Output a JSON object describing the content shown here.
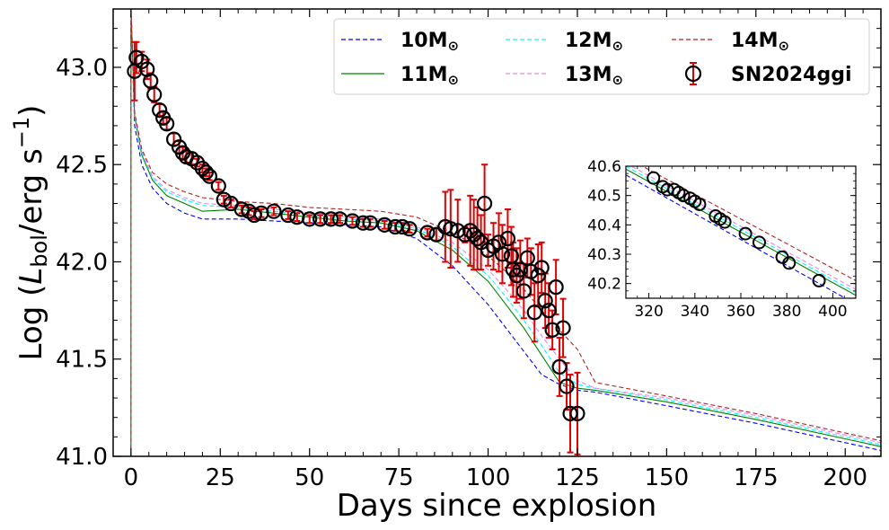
{
  "chart_data": {
    "type": "line",
    "xlabel": "Days since explosion",
    "ylabel": {
      "prefix": "Log (",
      "L": "L",
      "sub": "bol",
      "unit": "/erg s",
      "sup": "−1",
      "suffix": ")"
    },
    "xlim": [
      -5,
      210
    ],
    "ylim": [
      41.0,
      43.3
    ],
    "xticks": [
      0,
      25,
      50,
      75,
      100,
      125,
      150,
      175,
      200
    ],
    "yticks": [
      41.0,
      41.5,
      42.0,
      42.5,
      43.0
    ],
    "legend_position": "top-right",
    "series": [
      {
        "name": "10M",
        "color": "#0000ff",
        "dash": "dashed",
        "points": [
          [
            0,
            43.3
          ],
          [
            1,
            42.7
          ],
          [
            3,
            42.5
          ],
          [
            6,
            42.38
          ],
          [
            10,
            42.3
          ],
          [
            15,
            42.25
          ],
          [
            20,
            42.22
          ],
          [
            30,
            42.22
          ],
          [
            40,
            42.21
          ],
          [
            50,
            42.2
          ],
          [
            60,
            42.19
          ],
          [
            70,
            42.18
          ],
          [
            80,
            42.12
          ],
          [
            85,
            42.05
          ],
          [
            90,
            41.98
          ],
          [
            95,
            41.88
          ],
          [
            100,
            41.78
          ],
          [
            105,
            41.66
          ],
          [
            110,
            41.54
          ],
          [
            115,
            41.42
          ],
          [
            120,
            41.37
          ],
          [
            125,
            41.34
          ],
          [
            130,
            41.33
          ],
          [
            150,
            41.26
          ],
          [
            175,
            41.17
          ],
          [
            200,
            41.07
          ],
          [
            210,
            41.03
          ]
        ]
      },
      {
        "name": "11M",
        "color": "#008000",
        "dash": "solid",
        "points": [
          [
            0,
            43.3
          ],
          [
            1,
            42.75
          ],
          [
            3,
            42.55
          ],
          [
            6,
            42.42
          ],
          [
            10,
            42.34
          ],
          [
            15,
            42.3
          ],
          [
            20,
            42.26
          ],
          [
            30,
            42.27
          ],
          [
            40,
            42.25
          ],
          [
            50,
            42.23
          ],
          [
            60,
            42.21
          ],
          [
            70,
            42.2
          ],
          [
            80,
            42.16
          ],
          [
            85,
            42.11
          ],
          [
            90,
            42.06
          ],
          [
            95,
            41.98
          ],
          [
            100,
            41.9
          ],
          [
            105,
            41.78
          ],
          [
            110,
            41.66
          ],
          [
            115,
            41.52
          ],
          [
            120,
            41.38
          ],
          [
            125,
            41.35
          ],
          [
            130,
            41.34
          ],
          [
            150,
            41.28
          ],
          [
            175,
            41.19
          ],
          [
            200,
            41.09
          ],
          [
            210,
            41.05
          ]
        ]
      },
      {
        "name": "12M",
        "color": "#00ffff",
        "dash": "dashed",
        "points": [
          [
            0,
            43.3
          ],
          [
            1,
            42.75
          ],
          [
            3,
            42.56
          ],
          [
            6,
            42.43
          ],
          [
            10,
            42.36
          ],
          [
            15,
            42.32
          ],
          [
            20,
            42.29
          ],
          [
            30,
            42.28
          ],
          [
            40,
            42.26
          ],
          [
            50,
            42.24
          ],
          [
            60,
            42.22
          ],
          [
            70,
            42.21
          ],
          [
            80,
            42.17
          ],
          [
            85,
            42.13
          ],
          [
            90,
            42.08
          ],
          [
            95,
            42.0
          ],
          [
            100,
            41.93
          ],
          [
            105,
            41.82
          ],
          [
            110,
            41.7
          ],
          [
            115,
            41.57
          ],
          [
            120,
            41.43
          ],
          [
            125,
            41.37
          ],
          [
            130,
            41.35
          ],
          [
            150,
            41.29
          ],
          [
            175,
            41.2
          ],
          [
            200,
            41.1
          ],
          [
            210,
            41.06
          ]
        ]
      },
      {
        "name": "13M",
        "color": "#ee82ee",
        "dash": "dashed",
        "points": [
          [
            0,
            43.3
          ],
          [
            1,
            42.76
          ],
          [
            3,
            42.57
          ],
          [
            6,
            42.44
          ],
          [
            10,
            42.37
          ],
          [
            15,
            42.33
          ],
          [
            20,
            42.3
          ],
          [
            30,
            42.29
          ],
          [
            40,
            42.27
          ],
          [
            50,
            42.25
          ],
          [
            60,
            42.23
          ],
          [
            70,
            42.22
          ],
          [
            80,
            42.18
          ],
          [
            85,
            42.14
          ],
          [
            90,
            42.1
          ],
          [
            95,
            42.03
          ],
          [
            100,
            41.96
          ],
          [
            105,
            41.86
          ],
          [
            110,
            41.75
          ],
          [
            115,
            41.62
          ],
          [
            120,
            41.5
          ],
          [
            125,
            41.39
          ],
          [
            130,
            41.35
          ],
          [
            150,
            41.3
          ],
          [
            175,
            41.21
          ],
          [
            200,
            41.11
          ],
          [
            210,
            41.07
          ]
        ]
      },
      {
        "name": "14M",
        "color": "#b22222",
        "dash": "dashed",
        "points": [
          [
            0,
            43.3
          ],
          [
            1,
            42.77
          ],
          [
            3,
            42.58
          ],
          [
            6,
            42.46
          ],
          [
            10,
            42.4
          ],
          [
            15,
            42.36
          ],
          [
            20,
            42.33
          ],
          [
            30,
            42.31
          ],
          [
            40,
            42.3
          ],
          [
            50,
            42.28
          ],
          [
            60,
            42.27
          ],
          [
            70,
            42.26
          ],
          [
            80,
            42.23
          ],
          [
            85,
            42.19
          ],
          [
            90,
            42.15
          ],
          [
            95,
            42.1
          ],
          [
            100,
            42.03
          ],
          [
            105,
            41.95
          ],
          [
            110,
            41.86
          ],
          [
            115,
            41.75
          ],
          [
            120,
            41.65
          ],
          [
            125,
            41.55
          ],
          [
            130,
            41.38
          ],
          [
            150,
            41.31
          ],
          [
            175,
            41.22
          ],
          [
            200,
            41.12
          ],
          [
            210,
            41.08
          ]
        ]
      }
    ],
    "observed": {
      "name": "SN2024ggi",
      "points": [
        [
          1.0,
          42.98,
          0.15
        ],
        [
          1.5,
          43.05,
          0.08
        ],
        [
          3,
          43.03,
          0.05
        ],
        [
          4.5,
          42.99,
          0.05
        ],
        [
          5.5,
          42.93,
          0.04
        ],
        [
          6.5,
          42.86,
          0.04
        ],
        [
          8,
          42.78,
          0.03
        ],
        [
          9,
          42.74,
          0.03
        ],
        [
          10,
          42.71,
          0.03
        ],
        [
          12,
          42.63,
          0.03
        ],
        [
          13.5,
          42.59,
          0.03
        ],
        [
          14.5,
          42.56,
          0.03
        ],
        [
          15.5,
          42.54,
          0.03
        ],
        [
          17,
          42.53,
          0.03
        ],
        [
          18.5,
          42.51,
          0.02
        ],
        [
          20,
          42.48,
          0.02
        ],
        [
          21,
          42.46,
          0.02
        ],
        [
          22,
          42.44,
          0.02
        ],
        [
          24.5,
          42.39,
          0.02
        ],
        [
          26,
          42.32,
          0.02
        ],
        [
          28,
          42.3,
          0.02
        ],
        [
          31,
          42.27,
          0.02
        ],
        [
          33,
          42.26,
          0.02
        ],
        [
          34.5,
          42.24,
          0.02
        ],
        [
          36.5,
          42.25,
          0.02
        ],
        [
          40,
          42.26,
          0.02
        ],
        [
          44,
          42.24,
          0.02
        ],
        [
          46.5,
          42.23,
          0.02
        ],
        [
          50,
          42.22,
          0.02
        ],
        [
          53,
          42.22,
          0.02
        ],
        [
          56,
          42.22,
          0.02
        ],
        [
          58.5,
          42.22,
          0.02
        ],
        [
          62,
          42.21,
          0.02
        ],
        [
          65,
          42.2,
          0.02
        ],
        [
          67,
          42.2,
          0.02
        ],
        [
          71,
          42.19,
          0.02
        ],
        [
          74,
          42.18,
          0.02
        ],
        [
          76,
          42.18,
          0.02
        ],
        [
          78,
          42.17,
          0.02
        ],
        [
          83,
          42.15,
          0.02
        ],
        [
          85.5,
          42.14,
          0.03
        ],
        [
          88,
          42.18,
          0.18
        ],
        [
          89.5,
          42.17,
          0.2
        ],
        [
          91.5,
          42.16,
          0.16
        ],
        [
          93.5,
          42.14,
          0.04
        ],
        [
          95,
          42.16,
          0.18
        ],
        [
          96,
          42.14,
          0.18
        ],
        [
          97,
          42.12,
          0.16
        ],
        [
          98,
          42.1,
          0.14
        ],
        [
          99,
          42.3,
          0.2
        ],
        [
          100,
          42.06,
          0.08
        ],
        [
          101.5,
          42.08,
          0.12
        ],
        [
          103,
          42.1,
          0.15
        ],
        [
          104,
          42.04,
          0.15
        ],
        [
          105.5,
          42.12,
          0.15
        ],
        [
          106.5,
          42.03,
          0.15
        ],
        [
          107,
          41.96,
          0.14
        ],
        [
          108,
          41.93,
          0.14
        ],
        [
          109,
          41.96,
          0.15
        ],
        [
          110,
          41.85,
          0.14
        ],
        [
          111,
          42.02,
          0.1
        ],
        [
          112,
          41.95,
          0.12
        ],
        [
          113,
          41.74,
          0.15
        ],
        [
          114,
          41.93,
          0.16
        ],
        [
          115,
          41.97,
          0.13
        ],
        [
          116,
          41.8,
          0.14
        ],
        [
          117,
          41.75,
          0.14
        ],
        [
          118,
          41.65,
          0.1
        ],
        [
          119,
          41.87,
          0.14
        ],
        [
          120,
          41.46,
          0.15
        ],
        [
          121,
          41.66,
          0.15
        ],
        [
          122,
          41.36,
          0.12
        ],
        [
          123,
          41.22,
          0.2
        ],
        [
          125,
          41.22,
          0.21
        ]
      ]
    },
    "inset": {
      "xlim": [
        310,
        410
      ],
      "ylim": [
        40.15,
        40.6
      ],
      "xticks": [
        320,
        340,
        360,
        380,
        400
      ],
      "yticks": [
        40.2,
        40.3,
        40.4,
        40.5,
        40.6
      ],
      "series": [
        {
          "name": "10M",
          "points": [
            [
              310,
              40.57
            ],
            [
              410,
              40.13
            ]
          ]
        },
        {
          "name": "11M",
          "points": [
            [
              310,
              40.59
            ],
            [
              410,
              40.16
            ]
          ]
        },
        {
          "name": "12M",
          "points": [
            [
              310,
              40.6
            ],
            [
              410,
              40.17
            ]
          ]
        },
        {
          "name": "13M",
          "points": [
            [
              310,
              40.61
            ],
            [
              410,
              40.18
            ]
          ]
        },
        {
          "name": "14M",
          "points": [
            [
              310,
              40.63
            ],
            [
              410,
              40.21
            ]
          ]
        }
      ],
      "observed": [
        [
          322,
          40.56
        ],
        [
          326,
          40.53
        ],
        [
          328,
          40.52
        ],
        [
          331,
          40.52
        ],
        [
          333,
          40.51
        ],
        [
          335,
          40.5
        ],
        [
          338,
          40.49
        ],
        [
          340,
          40.48
        ],
        [
          342,
          40.47
        ],
        [
          349,
          40.43
        ],
        [
          351,
          40.42
        ],
        [
          353,
          40.41
        ],
        [
          362,
          40.37
        ],
        [
          368,
          40.34
        ],
        [
          378,
          40.29
        ],
        [
          381,
          40.27
        ],
        [
          394,
          40.21
        ]
      ]
    }
  }
}
